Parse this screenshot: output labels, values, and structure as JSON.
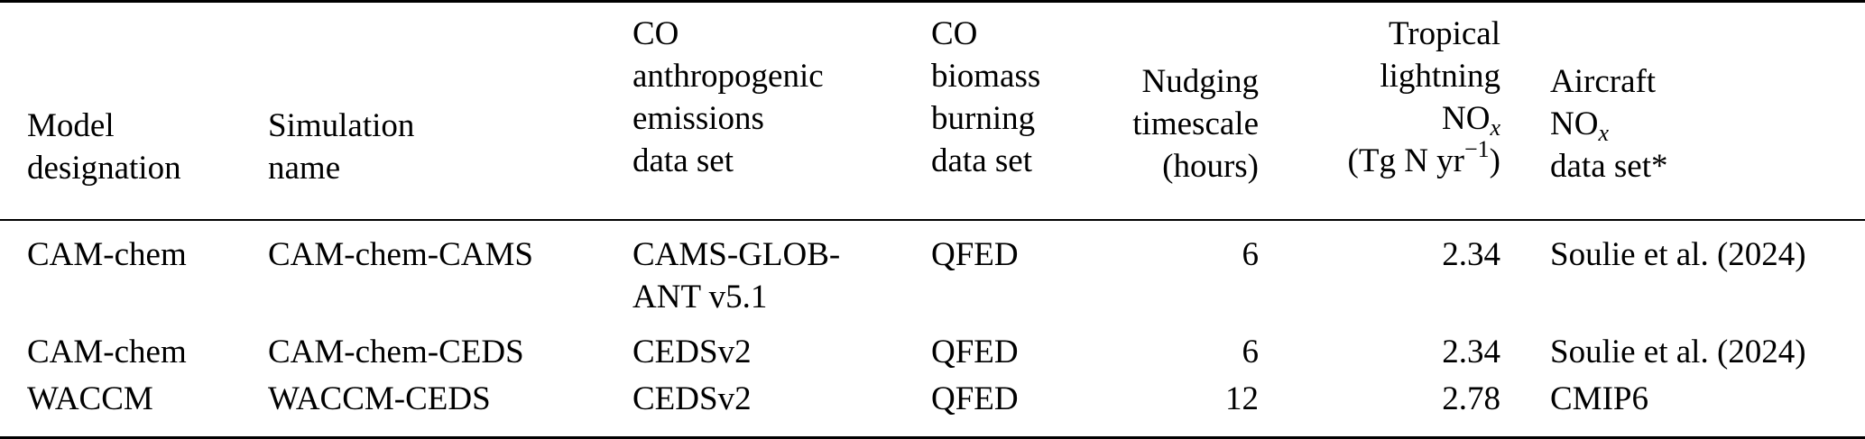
{
  "table": {
    "headers": {
      "model_designation": [
        "Model",
        "designation"
      ],
      "simulation_name": [
        "Simulation",
        "name"
      ],
      "co_anthro": [
        "CO",
        "anthropogenic",
        "emissions",
        "data set"
      ],
      "co_biomass": [
        "CO",
        "biomass",
        "burning",
        "data set"
      ],
      "nudging": [
        "Nudging",
        "timescale",
        "(hours)"
      ],
      "lightning": {
        "line1": "Tropical",
        "line2": "lightning",
        "line3_base": "NO",
        "line3_sub": "x",
        "line4_open": "(Tg N yr",
        "line4_sup": "−1",
        "line4_close": ")"
      },
      "aircraft": {
        "line1": "Aircraft",
        "line2_base": "NO",
        "line2_sub": "x",
        "line3": "data set*"
      }
    },
    "rows": [
      {
        "model": "CAM-chem",
        "simulation": "CAM-chem-CAMS",
        "co_anthro": [
          "CAMS-GLOB-",
          "ANT v5.1"
        ],
        "co_biomass": "QFED",
        "nudging": "6",
        "lightning": "2.34",
        "aircraft": "Soulie et al. (2024)"
      },
      {
        "model": "CAM-chem",
        "simulation": "CAM-chem-CEDS",
        "co_anthro": [
          "CEDSv2"
        ],
        "co_biomass": "QFED",
        "nudging": "6",
        "lightning": "2.34",
        "aircraft": "Soulie et al. (2024)"
      },
      {
        "model": "WACCM",
        "simulation": "WACCM-CEDS",
        "co_anthro": [
          "CEDSv2"
        ],
        "co_biomass": "QFED",
        "nudging": "12",
        "lightning": "2.78",
        "aircraft": "CMIP6"
      }
    ]
  }
}
